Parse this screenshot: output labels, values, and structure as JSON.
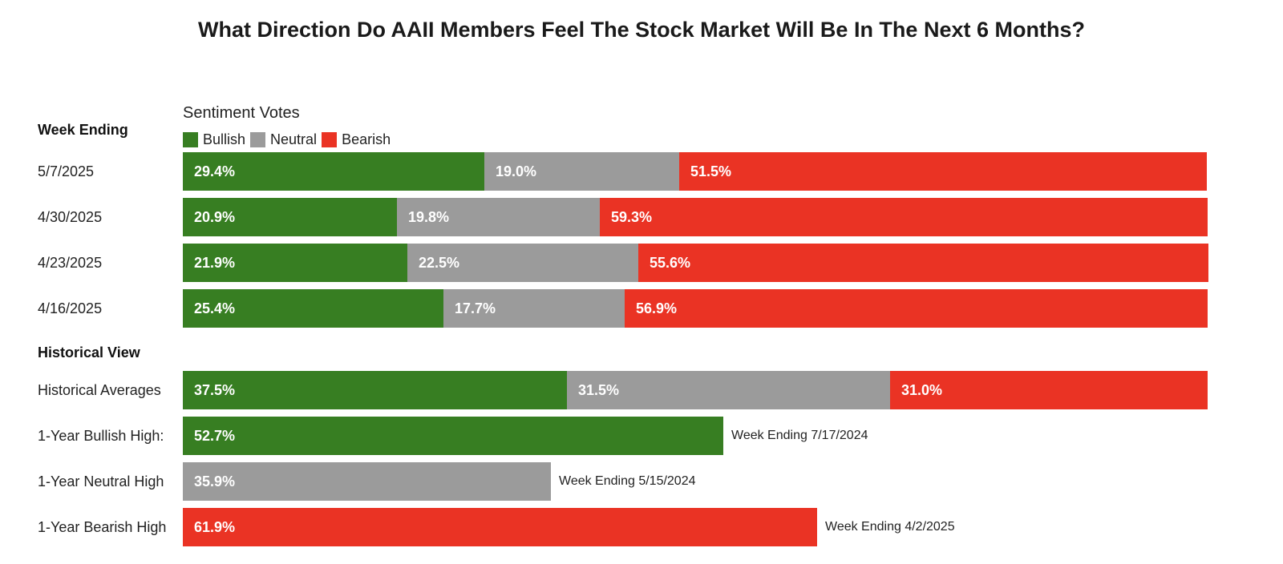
{
  "title": "What Direction Do AAII Members Feel The Stock Market Will Be In The Next 6 Months?",
  "legend_heading": "Sentiment Votes",
  "colors": {
    "bullish": "#377e22",
    "neutral": "#9b9b9b",
    "bearish": "#ea3324"
  },
  "chart_data": {
    "type": "bar",
    "orientation": "horizontal",
    "stacked": true,
    "title": "What Direction Do AAII Members Feel The Stock Market Will Be In The Next 6 Months?",
    "legend": [
      {
        "name": "Bullish",
        "color_key": "bullish"
      },
      {
        "name": "Neutral",
        "color_key": "neutral"
      },
      {
        "name": "Bearish",
        "color_key": "bearish"
      }
    ],
    "sections": [
      {
        "heading": "Week Ending",
        "rows": [
          {
            "label": "5/7/2025",
            "segments": [
              {
                "series": "bullish",
                "value": 29.4,
                "text": "29.4%"
              },
              {
                "series": "neutral",
                "value": 19.0,
                "text": "19.0%"
              },
              {
                "series": "bearish",
                "value": 51.5,
                "text": "51.5%"
              }
            ]
          },
          {
            "label": "4/30/2025",
            "segments": [
              {
                "series": "bullish",
                "value": 20.9,
                "text": "20.9%"
              },
              {
                "series": "neutral",
                "value": 19.8,
                "text": "19.8%"
              },
              {
                "series": "bearish",
                "value": 59.3,
                "text": "59.3%"
              }
            ]
          },
          {
            "label": "4/23/2025",
            "segments": [
              {
                "series": "bullish",
                "value": 21.9,
                "text": "21.9%"
              },
              {
                "series": "neutral",
                "value": 22.5,
                "text": "22.5%"
              },
              {
                "series": "bearish",
                "value": 55.6,
                "text": "55.6%"
              }
            ]
          },
          {
            "label": "4/16/2025",
            "segments": [
              {
                "series": "bullish",
                "value": 25.4,
                "text": "25.4%"
              },
              {
                "series": "neutral",
                "value": 17.7,
                "text": "17.7%"
              },
              {
                "series": "bearish",
                "value": 56.9,
                "text": "56.9%"
              }
            ]
          }
        ]
      },
      {
        "heading": "Historical View",
        "rows": [
          {
            "label": "Historical Averages",
            "segments": [
              {
                "series": "bullish",
                "value": 37.5,
                "text": "37.5%"
              },
              {
                "series": "neutral",
                "value": 31.5,
                "text": "31.5%"
              },
              {
                "series": "bearish",
                "value": 31.0,
                "text": "31.0%"
              }
            ]
          },
          {
            "label": "1-Year Bullish High:",
            "segments": [
              {
                "series": "bullish",
                "value": 52.7,
                "text": "52.7%"
              }
            ],
            "note": "Week Ending 7/17/2024"
          },
          {
            "label": "1-Year Neutral High",
            "segments": [
              {
                "series": "neutral",
                "value": 35.9,
                "text": "35.9%"
              }
            ],
            "note": "Week Ending 5/15/2024"
          },
          {
            "label": "1-Year Bearish High",
            "segments": [
              {
                "series": "bearish",
                "value": 61.9,
                "text": "61.9%"
              }
            ],
            "note": "Week Ending 4/2/2025"
          }
        ]
      }
    ],
    "xlim": [
      0,
      100
    ]
  }
}
